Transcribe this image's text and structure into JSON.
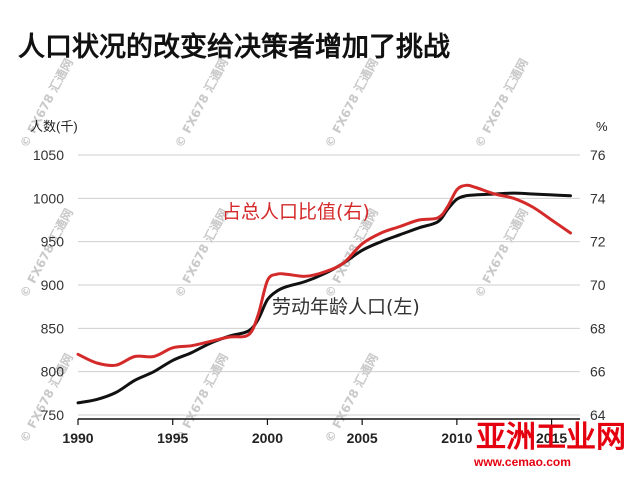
{
  "chart_data": {
    "type": "line",
    "title": "人口状况的改变给决策者增加了挑战",
    "left_axis_unit": "人数(千)",
    "right_axis_unit": "%",
    "left_ticks": [
      "1050",
      "1000",
      "950",
      "900",
      "850",
      "800",
      "750"
    ],
    "right_ticks": [
      "76",
      "74",
      "72",
      "70",
      "68",
      "66",
      "64"
    ],
    "x_ticks": [
      "1990",
      "1995",
      "2000",
      "2005",
      "2010",
      "2015"
    ],
    "ylim_left": [
      750,
      1050
    ],
    "ylim_right": [
      64,
      76
    ],
    "xlim": [
      1990,
      2016.5
    ],
    "grid": true,
    "series": [
      {
        "name": "劳动年龄人口(左)",
        "axis": "left",
        "color": "#111111",
        "x": [
          1990,
          1991,
          1992,
          1993,
          1994,
          1995,
          1996,
          1997,
          1998,
          1999,
          1999.5,
          2000,
          2000.5,
          2001,
          2002,
          2003,
          2004,
          2005,
          2006,
          2007,
          2008,
          2009,
          2009.5,
          2010,
          2010.5,
          2011,
          2012,
          2013,
          2014,
          2015,
          2016
        ],
        "values": [
          764,
          768,
          776,
          790,
          800,
          813,
          822,
          833,
          841,
          847,
          860,
          883,
          893,
          898,
          904,
          913,
          925,
          940,
          950,
          958,
          966,
          973,
          987,
          999,
          1003,
          1004,
          1005,
          1006,
          1005,
          1004,
          1003
        ]
      },
      {
        "name": "占总人口比值(右)",
        "axis": "right",
        "color": "#d42a2a",
        "x": [
          1990,
          1991,
          1992,
          1993,
          1994,
          1995,
          1996,
          1997,
          1998,
          1999,
          1999.5,
          2000,
          2000.5,
          2001,
          2002,
          2003,
          2004,
          2005,
          2006,
          2007,
          2008,
          2009,
          2009.5,
          2010,
          2010.5,
          2011,
          2012,
          2013,
          2014,
          2015,
          2016
        ],
        "values": [
          66.8,
          66.4,
          66.3,
          66.7,
          66.7,
          67.1,
          67.2,
          67.4,
          67.6,
          67.7,
          68.6,
          70.2,
          70.5,
          70.5,
          70.4,
          70.6,
          71.0,
          71.9,
          72.4,
          72.7,
          73.0,
          73.1,
          73.6,
          74.4,
          74.6,
          74.5,
          74.2,
          74.0,
          73.6,
          73.0,
          72.4
        ]
      }
    ]
  },
  "annotations": {
    "red_label": "占总人口比值(右)",
    "black_label": "劳动年龄人口(左)"
  },
  "watermark": {
    "text": "© FX678 汇通网"
  },
  "brand": {
    "name": "亚洲工业网",
    "url": "www.cemao.com"
  }
}
